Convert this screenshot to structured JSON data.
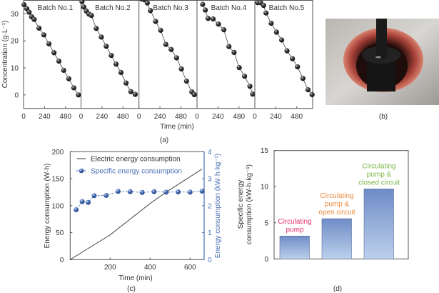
{
  "colors": {
    "axis": "#555555",
    "line": "#333333",
    "blue": "#4a6fb5",
    "bar_top": "#6f8cc7",
    "bar_bottom": "#bcd0ec",
    "pink": "#e8336f",
    "orange": "#e98a3c",
    "green": "#7ab648"
  },
  "captions": {
    "a": "(a)",
    "b": "(b)",
    "c": "(c)",
    "d": "(d)"
  },
  "chart_data": [
    {
      "type": "scatter",
      "panel": "a",
      "ylabel": "Concentration (g·L⁻¹)",
      "xlabel": "Time (min)",
      "ylim": [
        -5,
        35
      ],
      "xlim": [
        0,
        660
      ],
      "yticks": [
        0,
        10,
        20,
        30
      ],
      "xticks": [
        0,
        240,
        480
      ],
      "series": [
        {
          "name": "Batch No.1",
          "t": [
            5,
            37,
            63,
            92,
            121,
            177,
            232,
            290,
            348,
            404,
            459,
            517,
            575,
            628
          ],
          "c": [
            33.4,
            31.9,
            30.6,
            28.9,
            27.9,
            24.7,
            22.2,
            18.9,
            15.6,
            12.5,
            9.1,
            6.0,
            2.6,
            0.0
          ]
        },
        {
          "name": "Batch No.2",
          "t": [
            11,
            32,
            61,
            90,
            119,
            174,
            232,
            288,
            346,
            401,
            457,
            515,
            570,
            620
          ],
          "c": [
            34.5,
            32.5,
            31.0,
            29.9,
            29.4,
            24.6,
            21.4,
            18.0,
            14.6,
            11.4,
            8.3,
            4.4,
            1.2,
            0.2
          ]
        },
        {
          "name": "Batch No.3",
          "t": [
            30,
            60,
            95,
            131,
            190,
            248,
            307,
            368,
            430,
            485,
            544,
            605,
            633
          ],
          "c": [
            35.5,
            35.2,
            34.0,
            31.2,
            27.2,
            23.9,
            18.7,
            16.8,
            13.7,
            9.6,
            5.1,
            1.1,
            0.1
          ]
        },
        {
          "name": "Batch No.4",
          "t": [
            64,
            95,
            126,
            184,
            245,
            307,
            365,
            424,
            483,
            544,
            605,
            636
          ],
          "c": [
            33.5,
            31.4,
            28.3,
            28.1,
            26.2,
            24.1,
            17.9,
            15.7,
            10.1,
            6.9,
            3.2,
            0.3
          ]
        },
        {
          "name": "Batch No.5",
          "t": [
            33,
            67,
            100,
            128,
            187,
            248,
            307,
            368,
            430,
            488,
            550,
            608,
            655
          ],
          "c": [
            34.1,
            34.1,
            33.1,
            30.3,
            26.5,
            23.2,
            20.3,
            16.3,
            13.4,
            10.4,
            6.1,
            1.9,
            0.1
          ]
        }
      ]
    },
    {
      "type": "line",
      "panel": "c",
      "xlabel": "Time (min)",
      "ylabel": "Energy consumption (W·h)",
      "y2label": "Energy consumption (kW·h·kg⁻¹)",
      "xlim": [
        0,
        670
      ],
      "ylim": [
        0,
        200
      ],
      "y2lim": [
        0,
        4
      ],
      "xticks": [
        200,
        400,
        600
      ],
      "yticks": [
        0,
        50,
        100,
        150,
        200
      ],
      "y2ticks": [
        0,
        1,
        2,
        3,
        4
      ],
      "legend": "top-left",
      "series": [
        {
          "name": "Electric energy consumption",
          "axis": "left",
          "x": [
            0,
            200,
            400,
            480,
            660
          ],
          "y": [
            0,
            46,
            104,
            125,
            168
          ]
        },
        {
          "name": "Specific energy consumption",
          "axis": "right",
          "x": [
            30,
            60,
            90,
            120,
            180,
            240,
            300,
            360,
            420,
            480,
            540,
            600,
            660
          ],
          "y": [
            1.85,
            2.15,
            2.12,
            2.37,
            2.38,
            2.53,
            2.52,
            2.49,
            2.52,
            2.5,
            2.51,
            2.5,
            2.54
          ]
        }
      ]
    },
    {
      "type": "bar",
      "panel": "d",
      "ylabel_lines": [
        "Specific energy",
        "consumption (kW·h·kg⁻¹)"
      ],
      "ylim": [
        0,
        15
      ],
      "yticks": [
        0,
        5,
        10,
        15
      ],
      "categories": [
        {
          "lines": [
            "Circulating",
            "pump"
          ],
          "color": "#e8336f"
        },
        {
          "lines": [
            "Circulating",
            "pump &",
            "open circuit"
          ],
          "color": "#e98a3c"
        },
        {
          "lines": [
            "Circulating",
            "pump &",
            "closed circuit"
          ],
          "color": "#7ab648"
        }
      ],
      "values": [
        3.17,
        5.57,
        9.69
      ]
    }
  ]
}
